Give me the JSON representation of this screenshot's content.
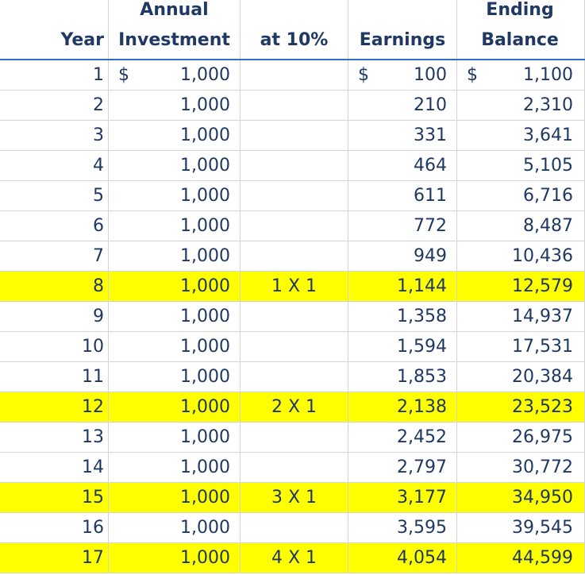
{
  "header": {
    "year": "Year",
    "annual_investment_line1": "Annual",
    "annual_investment_line2": "Investment",
    "rate": "at 10%",
    "earnings": "Earnings",
    "ending_balance_line1": "Ending",
    "ending_balance_line2": "Balance"
  },
  "currency_symbol": "$",
  "highlight_color": "#ffff00",
  "text_color": "#1f3864",
  "rows": [
    {
      "year": "1",
      "investment": "1,000",
      "note": "",
      "earnings": "100",
      "balance": "1,100",
      "currency": true,
      "highlight": false
    },
    {
      "year": "2",
      "investment": "1,000",
      "note": "",
      "earnings": "210",
      "balance": "2,310",
      "highlight": false
    },
    {
      "year": "3",
      "investment": "1,000",
      "note": "",
      "earnings": "331",
      "balance": "3,641",
      "highlight": false
    },
    {
      "year": "4",
      "investment": "1,000",
      "note": "",
      "earnings": "464",
      "balance": "5,105",
      "highlight": false
    },
    {
      "year": "5",
      "investment": "1,000",
      "note": "",
      "earnings": "611",
      "balance": "6,716",
      "highlight": false
    },
    {
      "year": "6",
      "investment": "1,000",
      "note": "",
      "earnings": "772",
      "balance": "8,487",
      "highlight": false
    },
    {
      "year": "7",
      "investment": "1,000",
      "note": "",
      "earnings": "949",
      "balance": "10,436",
      "highlight": false
    },
    {
      "year": "8",
      "investment": "1,000",
      "note": "1 X 1",
      "earnings": "1,144",
      "balance": "12,579",
      "highlight": true
    },
    {
      "year": "9",
      "investment": "1,000",
      "note": "",
      "earnings": "1,358",
      "balance": "14,937",
      "highlight": false
    },
    {
      "year": "10",
      "investment": "1,000",
      "note": "",
      "earnings": "1,594",
      "balance": "17,531",
      "highlight": false
    },
    {
      "year": "11",
      "investment": "1,000",
      "note": "",
      "earnings": "1,853",
      "balance": "20,384",
      "highlight": false
    },
    {
      "year": "12",
      "investment": "1,000",
      "note": "2 X 1",
      "earnings": "2,138",
      "balance": "23,523",
      "highlight": true
    },
    {
      "year": "13",
      "investment": "1,000",
      "note": "",
      "earnings": "2,452",
      "balance": "26,975",
      "highlight": false
    },
    {
      "year": "14",
      "investment": "1,000",
      "note": "",
      "earnings": "2,797",
      "balance": "30,772",
      "highlight": false
    },
    {
      "year": "15",
      "investment": "1,000",
      "note": "3 X 1",
      "earnings": "3,177",
      "balance": "34,950",
      "highlight": true
    },
    {
      "year": "16",
      "investment": "1,000",
      "note": "",
      "earnings": "3,595",
      "balance": "39,545",
      "highlight": false
    },
    {
      "year": "17",
      "investment": "1,000",
      "note": "4 X 1",
      "earnings": "4,054",
      "balance": "44,599",
      "highlight": true
    }
  ]
}
